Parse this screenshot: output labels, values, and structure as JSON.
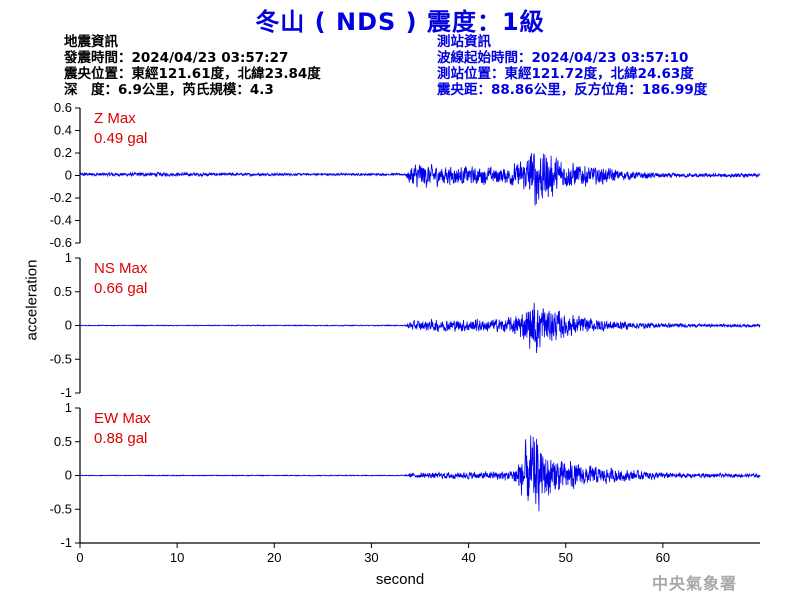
{
  "title": "冬山 ( NDS ) 震度：1級",
  "quake_info": {
    "heading": "地震資訊",
    "origin_time": "發震時間：2024/04/23 03:57:27",
    "epicenter": "震央位置：東經121.61度，北緯23.84度",
    "depth_magnitude": "深　度：6.9公里，芮氏規模：4.3"
  },
  "station_info": {
    "heading": "測站資訊",
    "wave_start": "波線起始時間：2024/04/23 03:57:10",
    "location": "測站位置：東經121.72度，北緯24.63度",
    "distance": "震央距：88.86公里，反方位角：186.99度"
  },
  "footer": "中央氣象署",
  "colors": {
    "title": "#0000e0",
    "trace": "#0000ee",
    "max_label": "#e00000",
    "footer": "#a8a8a8"
  },
  "chart_data": {
    "type": "line",
    "xlabel": "second",
    "ylabel": "acceleration",
    "xlim": [
      0,
      70
    ],
    "xticks": [
      0,
      10,
      20,
      30,
      40,
      50,
      60
    ],
    "grid": false,
    "panels": [
      {
        "name": "Z",
        "max_title": "Z Max",
        "max_value": "0.49 gal",
        "ylim": [
          -0.6,
          0.6
        ],
        "yticks": [
          -0.6,
          -0.4,
          -0.2,
          0,
          0.2,
          0.4,
          0.6
        ],
        "ytick_labels": [
          "-0.6",
          "-0.4",
          "-0.2",
          "0",
          "0.2",
          "0.4",
          "0.6"
        ],
        "envelope": [
          [
            0,
            0.02
          ],
          [
            8,
            0.025
          ],
          [
            14,
            0.02
          ],
          [
            22,
            0.015
          ],
          [
            33.5,
            0.012
          ],
          [
            34,
            0.12
          ],
          [
            35,
            0.18
          ],
          [
            36,
            0.14
          ],
          [
            38,
            0.12
          ],
          [
            41,
            0.11
          ],
          [
            44,
            0.1
          ],
          [
            46,
            0.22
          ],
          [
            47,
            0.45
          ],
          [
            48,
            0.3
          ],
          [
            50,
            0.17
          ],
          [
            53,
            0.12
          ],
          [
            56,
            0.06
          ],
          [
            60,
            0.03
          ],
          [
            65,
            0.025
          ],
          [
            70,
            0.025
          ]
        ]
      },
      {
        "name": "NS",
        "max_title": "NS Max",
        "max_value": "0.66 gal",
        "ylim": [
          -1,
          1
        ],
        "yticks": [
          -1,
          -0.5,
          0,
          0.5,
          1
        ],
        "ytick_labels": [
          "-1",
          "-0.5",
          "0",
          "0.5",
          "1"
        ],
        "envelope": [
          [
            0,
            0.008
          ],
          [
            33.5,
            0.01
          ],
          [
            34,
            0.1
          ],
          [
            36,
            0.12
          ],
          [
            40,
            0.13
          ],
          [
            44,
            0.15
          ],
          [
            46,
            0.35
          ],
          [
            47,
            0.6
          ],
          [
            48,
            0.4
          ],
          [
            50,
            0.25
          ],
          [
            53,
            0.14
          ],
          [
            57,
            0.07
          ],
          [
            61,
            0.04
          ],
          [
            65,
            0.03
          ],
          [
            70,
            0.03
          ]
        ]
      },
      {
        "name": "EW",
        "max_title": "EW Max",
        "max_value": "0.88 gal",
        "ylim": [
          -1,
          1
        ],
        "yticks": [
          -1,
          -0.5,
          0,
          0.5,
          1
        ],
        "ytick_labels": [
          "-1",
          "-0.5",
          "0",
          "0.5",
          "1"
        ],
        "envelope": [
          [
            0,
            0.008
          ],
          [
            33.5,
            0.01
          ],
          [
            34,
            0.05
          ],
          [
            38,
            0.07
          ],
          [
            42,
            0.08
          ],
          [
            44.5,
            0.12
          ],
          [
            45.5,
            0.5
          ],
          [
            46.5,
            0.85
          ],
          [
            47.5,
            0.6
          ],
          [
            49,
            0.38
          ],
          [
            52,
            0.22
          ],
          [
            56,
            0.12
          ],
          [
            60,
            0.07
          ],
          [
            65,
            0.04
          ],
          [
            70,
            0.035
          ]
        ]
      }
    ]
  }
}
